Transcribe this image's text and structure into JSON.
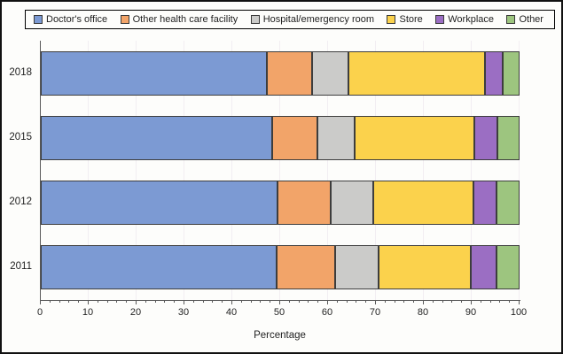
{
  "chart_data": {
    "type": "bar",
    "orientation": "horizontal-stacked",
    "title": "",
    "xlabel": "Percentage",
    "xlim": [
      0,
      100
    ],
    "x_ticks": [
      0,
      10,
      20,
      30,
      40,
      50,
      60,
      70,
      80,
      90,
      100
    ],
    "x_minor_tick_step": 2,
    "grid": "faint vertical gridlines at major ticks",
    "legend_position": "top",
    "categories": [
      "2018",
      "2015",
      "2012",
      "2011"
    ],
    "series": [
      {
        "name": "Doctor's office",
        "color": "#7c9ad3",
        "values": [
          47.3,
          48.3,
          49.4,
          49.2
        ]
      },
      {
        "name": "Other health care facility",
        "color": "#f2a469",
        "values": [
          9.4,
          9.4,
          11.2,
          12.2
        ]
      },
      {
        "name": "Hospital/emergency room",
        "color": "#cccccа",
        "values": [
          7.5,
          7.9,
          8.8,
          9.1
        ]
      },
      {
        "name": "Store",
        "color": "#fbd24c",
        "values": [
          28.5,
          25.0,
          21.0,
          19.3
        ]
      },
      {
        "name": "Workplace",
        "color": "#9b6ec3",
        "values": [
          3.8,
          4.7,
          4.8,
          5.3
        ]
      },
      {
        "name": "Other",
        "color": "#9dc57f",
        "values": [
          3.5,
          4.7,
          4.8,
          4.9
        ]
      }
    ],
    "series_color_fallbacks": [
      "#7c9ad3",
      "#f2a469",
      "#cbcbc9",
      "#fbd24c",
      "#9b6ec3",
      "#9dc57f"
    ]
  },
  "style_colors": {
    "axis": "#5a5a5a",
    "segment_border": "#3d3d3d",
    "gridline": "#f2eef2",
    "figure_border": "#111111",
    "background": "#fdfdfb"
  }
}
